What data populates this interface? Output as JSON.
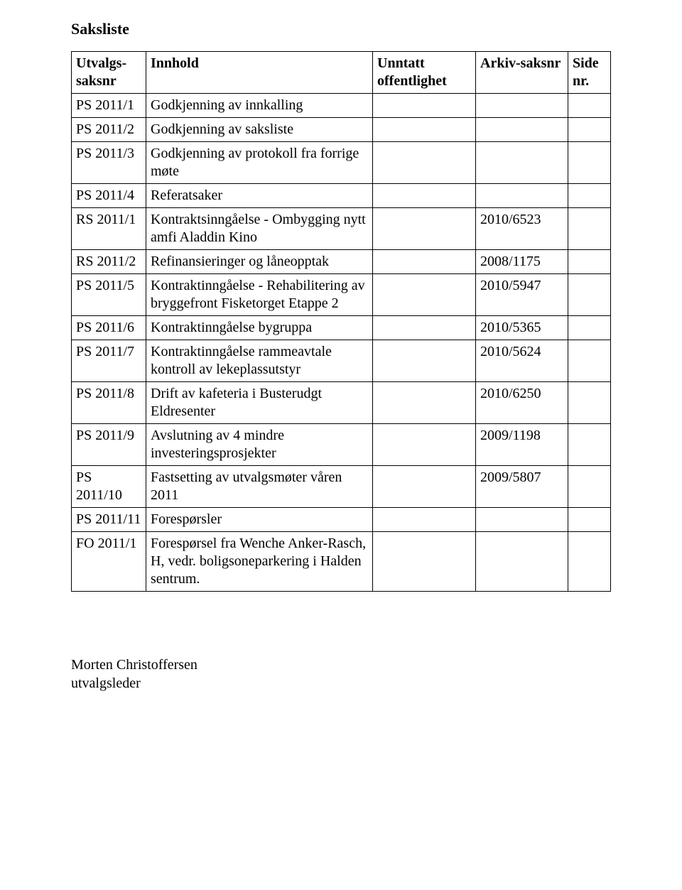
{
  "doc": {
    "title": "Saksliste"
  },
  "columns": {
    "c1": "Utvalgs-saksnr",
    "c2": "Innhold",
    "c3": "Unntatt offentlighet",
    "c4": "Arkiv-saksnr",
    "c5": "Side nr."
  },
  "rows": [
    {
      "saksnr": "PS 2011/1",
      "innhold": "Godkjenning av innkalling",
      "unntatt": "",
      "arkiv": "",
      "side": ""
    },
    {
      "saksnr": "PS 2011/2",
      "innhold": "Godkjenning av saksliste",
      "unntatt": "",
      "arkiv": "",
      "side": ""
    },
    {
      "saksnr": "PS 2011/3",
      "innhold": "Godkjenning av protokoll fra forrige møte",
      "unntatt": "",
      "arkiv": "",
      "side": ""
    },
    {
      "saksnr": "PS 2011/4",
      "innhold": "Referatsaker",
      "unntatt": "",
      "arkiv": "",
      "side": ""
    },
    {
      "saksnr": "RS 2011/1",
      "innhold": "Kontraktsinngåelse - Ombygging nytt amfi Aladdin Kino",
      "unntatt": "",
      "arkiv": "2010/6523",
      "side": ""
    },
    {
      "saksnr": "RS 2011/2",
      "innhold": "Refinansieringer og låneopptak",
      "unntatt": "",
      "arkiv": "2008/1175",
      "side": ""
    },
    {
      "saksnr": "PS 2011/5",
      "innhold": "Kontraktinngåelse - Rehabilitering av bryggefront Fisketorget  Etappe 2",
      "unntatt": "",
      "arkiv": "2010/5947",
      "side": ""
    },
    {
      "saksnr": "PS 2011/6",
      "innhold": "Kontraktinngåelse bygruppa",
      "unntatt": "",
      "arkiv": "2010/5365",
      "side": ""
    },
    {
      "saksnr": "PS 2011/7",
      "innhold": "Kontraktinngåelse rammeavtale kontroll av lekeplassutstyr",
      "unntatt": "",
      "arkiv": "2010/5624",
      "side": ""
    },
    {
      "saksnr": "PS 2011/8",
      "innhold": "Drift av kafeteria i Busterudgt Eldresenter",
      "unntatt": "",
      "arkiv": "2010/6250",
      "side": ""
    },
    {
      "saksnr": "PS 2011/9",
      "innhold": "Avslutning av 4 mindre investeringsprosjekter",
      "unntatt": "",
      "arkiv": "2009/1198",
      "side": ""
    },
    {
      "saksnr": "PS 2011/10",
      "innhold": "Fastsetting av utvalgsmøter våren 2011",
      "unntatt": "",
      "arkiv": "2009/5807",
      "side": ""
    },
    {
      "saksnr": "PS 2011/11",
      "innhold": "Forespørsler",
      "unntatt": "",
      "arkiv": "",
      "side": ""
    },
    {
      "saksnr": "FO 2011/1",
      "innhold": "Forespørsel fra Wenche Anker-Rasch, H, vedr. boligsoneparkering i Halden sentrum.",
      "unntatt": "",
      "arkiv": "",
      "side": ""
    }
  ],
  "signature": {
    "name": "Morten Christoffersen",
    "role": "utvalgsleder"
  }
}
